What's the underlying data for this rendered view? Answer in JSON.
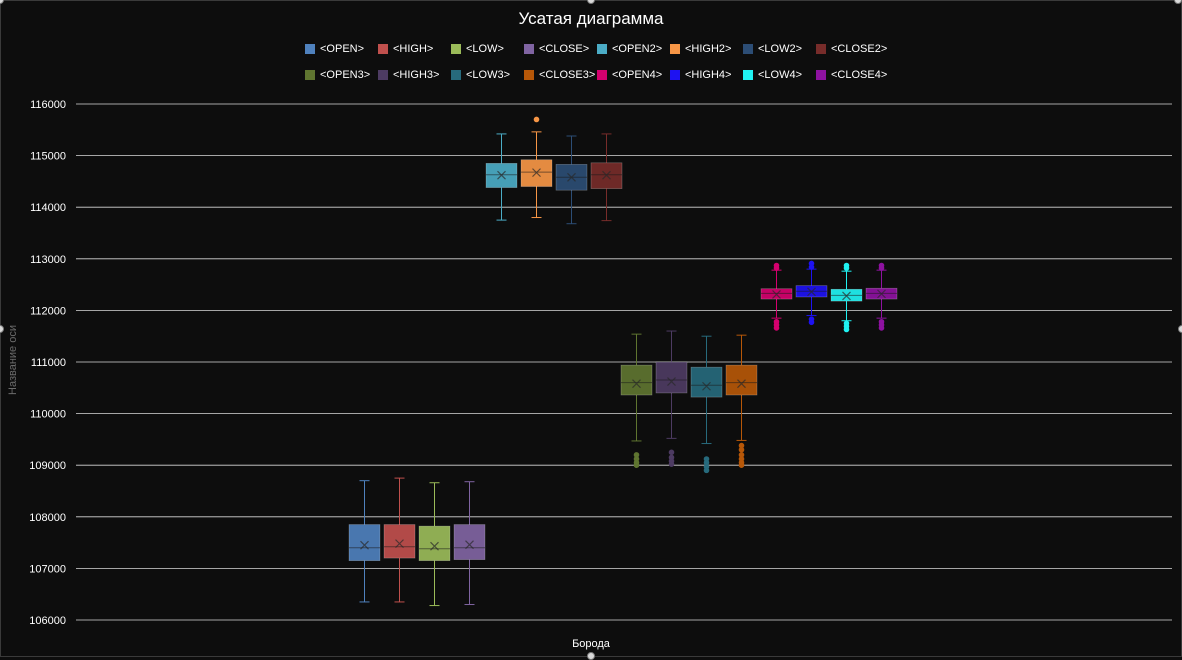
{
  "chart_data": {
    "type": "box",
    "title": "Усатая диаграмма",
    "xlabel": "Борода",
    "ylabel": "Название оси",
    "ylim": [
      106000,
      116000
    ],
    "yticks": [
      "106000",
      "107000",
      "108000",
      "109000",
      "110000",
      "111000",
      "112000",
      "113000",
      "114000",
      "115000",
      "116000"
    ],
    "grid": true,
    "legend_position": "top",
    "series": [
      {
        "name": "<OPEN>",
        "color": "#4f81bd",
        "min": 106350,
        "q1": 107150,
        "median": 107400,
        "q3": 107850,
        "max": 108700,
        "mean": 107450,
        "outliers": []
      },
      {
        "name": "<HIGH>",
        "color": "#c0504d",
        "min": 106350,
        "q1": 107200,
        "median": 107420,
        "q3": 107850,
        "max": 108750,
        "mean": 107480,
        "outliers": []
      },
      {
        "name": "<LOW>",
        "color": "#9bbb59",
        "min": 106280,
        "q1": 107150,
        "median": 107380,
        "q3": 107820,
        "max": 108660,
        "mean": 107430,
        "outliers": []
      },
      {
        "name": "<CLOSE>",
        "color": "#8064a2",
        "min": 106300,
        "q1": 107170,
        "median": 107400,
        "q3": 107850,
        "max": 108680,
        "mean": 107460,
        "outliers": []
      },
      {
        "name": "<OPEN2>",
        "color": "#4bacc6",
        "min": 113750,
        "q1": 114380,
        "median": 114630,
        "q3": 114850,
        "max": 115420,
        "mean": 114620,
        "outliers": []
      },
      {
        "name": "<HIGH2>",
        "color": "#f79646",
        "min": 113800,
        "q1": 114400,
        "median": 114680,
        "q3": 114920,
        "max": 115460,
        "mean": 114670,
        "outliers": [
          115700
        ]
      },
      {
        "name": "<LOW2>",
        "color": "#2c4d75",
        "min": 113680,
        "q1": 114330,
        "median": 114580,
        "q3": 114830,
        "max": 115380,
        "mean": 114580,
        "outliers": []
      },
      {
        "name": "<CLOSE2>",
        "color": "#772c2a",
        "min": 113740,
        "q1": 114360,
        "median": 114630,
        "q3": 114860,
        "max": 115420,
        "mean": 114620,
        "outliers": []
      },
      {
        "name": "<OPEN3>",
        "color": "#5f7530",
        "min": 109470,
        "q1": 110360,
        "median": 110600,
        "q3": 110940,
        "max": 111540,
        "mean": 110580,
        "outliers": [
          109200,
          109120,
          109050,
          109000
        ]
      },
      {
        "name": "<HIGH3>",
        "color": "#4d3b62",
        "min": 109520,
        "q1": 110400,
        "median": 110650,
        "q3": 111000,
        "max": 111600,
        "mean": 110620,
        "outliers": [
          109250,
          109150,
          109080,
          109020
        ]
      },
      {
        "name": "<LOW3>",
        "color": "#276a7c",
        "min": 109420,
        "q1": 110320,
        "median": 110550,
        "q3": 110900,
        "max": 111500,
        "mean": 110530,
        "outliers": [
          109120,
          109050,
          108970,
          108900
        ]
      },
      {
        "name": "<CLOSE3>",
        "color": "#b65708",
        "min": 109480,
        "q1": 110360,
        "median": 110600,
        "q3": 110940,
        "max": 111520,
        "mean": 110580,
        "outliers": [
          109380,
          109300,
          109200,
          109120,
          109050,
          109000
        ]
      },
      {
        "name": "<OPEN4>",
        "color": "#d5006e",
        "min": 111850,
        "q1": 112220,
        "median": 112330,
        "q3": 112420,
        "max": 112780,
        "mean": 112310,
        "outliers": [
          112870,
          112820,
          111780,
          111720,
          111660
        ]
      },
      {
        "name": "<HIGH4>",
        "color": "#1e12f2",
        "min": 111900,
        "q1": 112260,
        "median": 112370,
        "q3": 112480,
        "max": 112800,
        "mean": 112360,
        "outliers": [
          112910,
          112840,
          111830,
          111770
        ]
      },
      {
        "name": "<LOW4>",
        "color": "#20f2f2",
        "min": 111800,
        "q1": 112180,
        "median": 112290,
        "q3": 112410,
        "max": 112760,
        "mean": 112280,
        "outliers": [
          112870,
          112820,
          111750,
          111690,
          111630
        ]
      },
      {
        "name": "<CLOSE4>",
        "color": "#8e12a0",
        "min": 111850,
        "q1": 112220,
        "median": 112330,
        "q3": 112430,
        "max": 112780,
        "mean": 112320,
        "outliers": [
          112870,
          112820,
          111780,
          111720,
          111660
        ]
      }
    ]
  }
}
